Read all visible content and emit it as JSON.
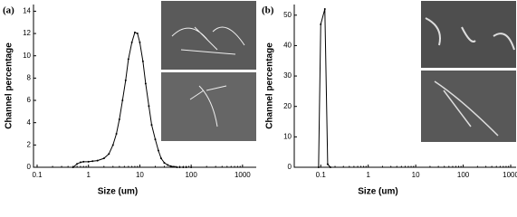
{
  "chart_data": [
    {
      "type": "line",
      "panel_label": "(a)",
      "x_label": "Size (um)",
      "y_label": "Channel percentage",
      "log_x": true,
      "color": "#000000",
      "x": [
        0.5,
        0.6,
        0.7,
        0.8,
        1,
        1.2,
        1.5,
        2,
        2.5,
        3,
        3.5,
        4,
        4.6,
        5.3,
        6,
        7,
        8,
        9,
        10,
        11.5,
        13,
        15,
        17,
        20,
        23,
        26,
        30,
        35,
        40,
        46,
        53,
        60,
        70,
        80,
        100
      ],
      "values": [
        0,
        0.3,
        0.45,
        0.5,
        0.5,
        0.55,
        0.6,
        0.8,
        1.2,
        2,
        3,
        4.3,
        6,
        7.8,
        9.7,
        11.2,
        12.1,
        12,
        11.2,
        9.5,
        7.5,
        5.5,
        3.8,
        2.5,
        1.5,
        0.8,
        0.4,
        0.2,
        0.1,
        0.05,
        0,
        0,
        0,
        0,
        0
      ],
      "xlim": [
        0.085,
        1850
      ],
      "xticks": [
        0.1,
        1,
        10,
        100,
        1000
      ],
      "ylim": [
        0,
        14.6
      ],
      "yticks": [
        0,
        2,
        4,
        6,
        8,
        10,
        12,
        14
      ]
    },
    {
      "type": "line",
      "panel_label": "(b)",
      "x_label": "Size (um)",
      "y_label": "Channel percentage",
      "log_x": true,
      "color": "#000000",
      "x": [
        0.09,
        0.1,
        0.122,
        0.14,
        0.16
      ],
      "values": [
        0,
        47,
        52,
        1,
        0
      ],
      "xlim": [
        0.0277,
        1300
      ],
      "xticks": [
        0.1,
        1,
        10,
        100,
        1000
      ],
      "ylim": [
        0,
        53.5
      ],
      "yticks": [
        0,
        10,
        20,
        30,
        40,
        50
      ]
    }
  ]
}
